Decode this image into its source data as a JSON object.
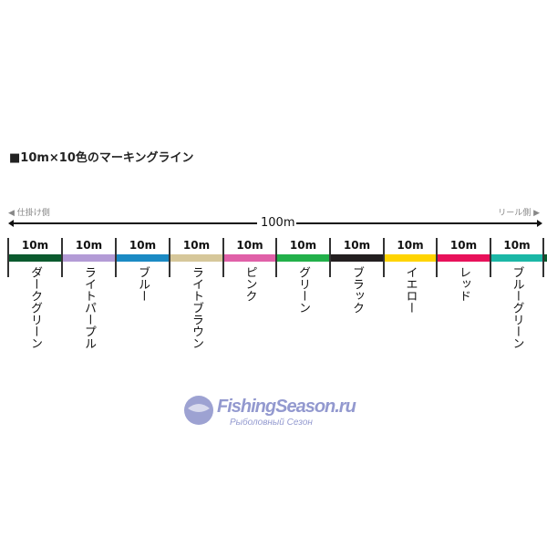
{
  "title": "■10m×10色のマーキングライン",
  "left_side": "◀ 仕掛け側",
  "right_side": "リール側 ▶",
  "total_length": "100m",
  "segments": [
    {
      "length": "10m",
      "name": "ダークグリーン",
      "color": "#0b5a2e"
    },
    {
      "length": "10m",
      "name": "ライトパープル",
      "color": "#b39bd6"
    },
    {
      "length": "10m",
      "name": "ブルー",
      "color": "#1b8ac4"
    },
    {
      "length": "10m",
      "name": "ライトブラウン",
      "color": "#d6c79a"
    },
    {
      "length": "10m",
      "name": "ピンク",
      "color": "#e060a8"
    },
    {
      "length": "10m",
      "name": "グリーン",
      "color": "#22b04a"
    },
    {
      "length": "10m",
      "name": "ブラック",
      "color": "#231f20"
    },
    {
      "length": "10m",
      "name": "イエロー",
      "color": "#ffd400"
    },
    {
      "length": "10m",
      "name": "レッド",
      "color": "#e8115a"
    },
    {
      "length": "10m",
      "name": "ブルーグリーン",
      "color": "#1bb7a6"
    }
  ],
  "watermark": {
    "line1": "FishingSeason.ru",
    "line2": "Рыболовный Сезон"
  }
}
